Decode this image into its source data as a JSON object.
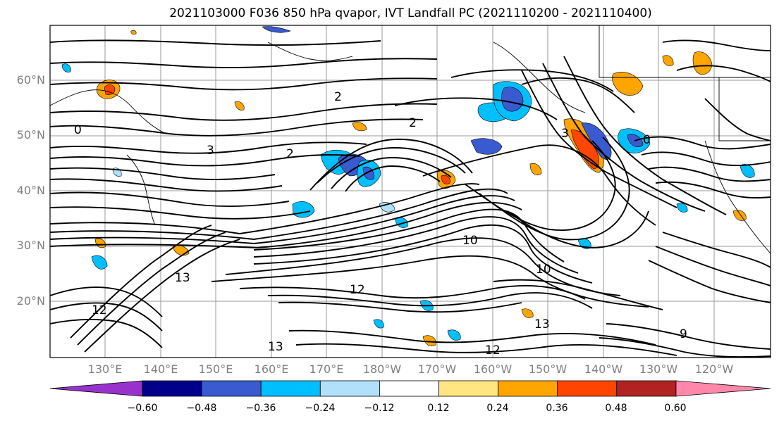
{
  "title": "2021103000 F036 850 hPa qvapor, IVT Landfall PC (2021110200 - 2021110400)",
  "map": {
    "lat_ticks": [
      "60°N",
      "50°N",
      "40°N",
      "30°N",
      "20°N"
    ],
    "lon_ticks": [
      "130°E",
      "140°E",
      "150°E",
      "160°E",
      "170°E",
      "180°W",
      "170°W",
      "160°W",
      "150°W",
      "140°W",
      "130°W",
      "120°W"
    ],
    "contour_labels": [
      "2",
      "3",
      "2",
      "2",
      "0",
      "3",
      "0",
      "10",
      "10",
      "13",
      "13",
      "12",
      "12",
      "13",
      "9",
      "12"
    ]
  },
  "colorbar": {
    "colors": [
      "#9932cc",
      "#00008b",
      "#3a5bcf",
      "#00bfff",
      "#b0e0fa",
      "#ffffff",
      "#ffe680",
      "#ffa500",
      "#ff4500",
      "#b22222",
      "#ff88aa"
    ],
    "tick_labels": [
      "−0.60",
      "−0.48",
      "−0.36",
      "−0.24",
      "−0.12",
      "0.12",
      "0.24",
      "0.36",
      "0.48",
      "0.60"
    ]
  }
}
